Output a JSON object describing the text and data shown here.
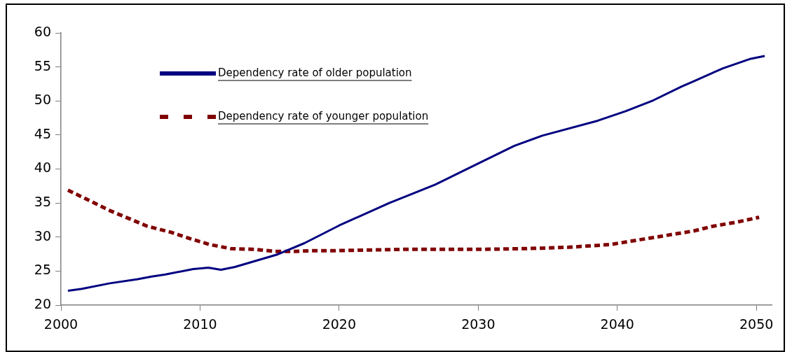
{
  "chart_data": {
    "type": "line",
    "xlim": [
      2000,
      2051.1
    ],
    "xticks": [
      2000,
      2010,
      2020,
      2030,
      2040,
      2050
    ],
    "ylim": [
      20,
      60
    ],
    "yticks": [
      20,
      25,
      30,
      35,
      40,
      45,
      50,
      55,
      60
    ],
    "grid": false,
    "legend": "top left",
    "marker": "none",
    "series": [
      {
        "name": "Dependency rate of older population",
        "color": "#000080",
        "line_style": "solid",
        "x": [
          2000.5,
          2001.5,
          2003.5,
          2005.5,
          2006.5,
          2007.5,
          2009.5,
          2010.6,
          2011.5,
          2012.5,
          2015.5,
          2017.5,
          2020,
          2023.6,
          2026.9,
          2030,
          2032.6,
          2034.6,
          2038.6,
          2040.6,
          2042.6,
          2044.6,
          2045.5,
          2046.6,
          2047.6,
          2049.6,
          2050.6
        ],
        "values": [
          22.1,
          22.4,
          23.2,
          23.8,
          24.2,
          24.5,
          25.3,
          25.5,
          25.2,
          25.6,
          27.4,
          29.1,
          31.7,
          35.0,
          37.7,
          40.8,
          43.4,
          44.9,
          47.1,
          48.5,
          50.1,
          52.1,
          52.9,
          53.9,
          54.8,
          56.2,
          56.6
        ]
      },
      {
        "name": "Dependency rate of younger population",
        "color": "#800000",
        "line_style": "dashed",
        "x": [
          2000.5,
          2002.1,
          2003.5,
          2006.2,
          2007.9,
          2009.4,
          2010.7,
          2012.2,
          2013.8,
          2015.4,
          2016.8,
          2018.3,
          2019.7,
          2024.7,
          2030.4,
          2033.4,
          2036.5,
          2039.5,
          2041,
          2042.5,
          2045.5,
          2046.9,
          2048.6,
          2050.2
        ],
        "values": [
          36.9,
          35.3,
          33.9,
          31.6,
          30.7,
          29.7,
          28.9,
          28.3,
          28.2,
          27.9,
          27.9,
          28.0,
          28.0,
          28.2,
          28.2,
          28.3,
          28.5,
          28.9,
          29.4,
          29.9,
          30.9,
          31.6,
          32.2,
          32.9
        ]
      }
    ]
  }
}
